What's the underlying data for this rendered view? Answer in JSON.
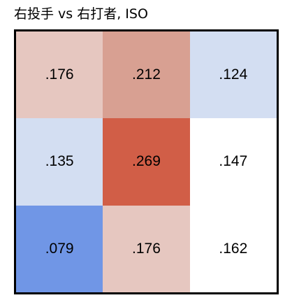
{
  "chart_data": {
    "type": "heatmap",
    "title": "右投手 vs 右打者, ISO",
    "xlabel": "",
    "ylabel": "",
    "grid": false,
    "rows": [
      {
        "cells": [
          {
            "label": ".176",
            "value": 0.176,
            "color": "#e6c7c0"
          },
          {
            "label": ".212",
            "value": 0.212,
            "color": "#d8a092"
          },
          {
            "label": ".124",
            "value": 0.124,
            "color": "#d3def2"
          }
        ]
      },
      {
        "cells": [
          {
            "label": ".135",
            "value": 0.135,
            "color": "#d3def2"
          },
          {
            "label": ".269",
            "value": 0.269,
            "color": "#d15e47"
          },
          {
            "label": ".147",
            "value": 0.147,
            "color": "#ffffff"
          }
        ]
      },
      {
        "cells": [
          {
            "label": ".079",
            "value": 0.079,
            "color": "#7096e6"
          },
          {
            "label": ".176",
            "value": 0.176,
            "color": "#e6c7c0"
          },
          {
            "label": ".162",
            "value": 0.162,
            "color": "#ffffff"
          }
        ]
      }
    ]
  }
}
